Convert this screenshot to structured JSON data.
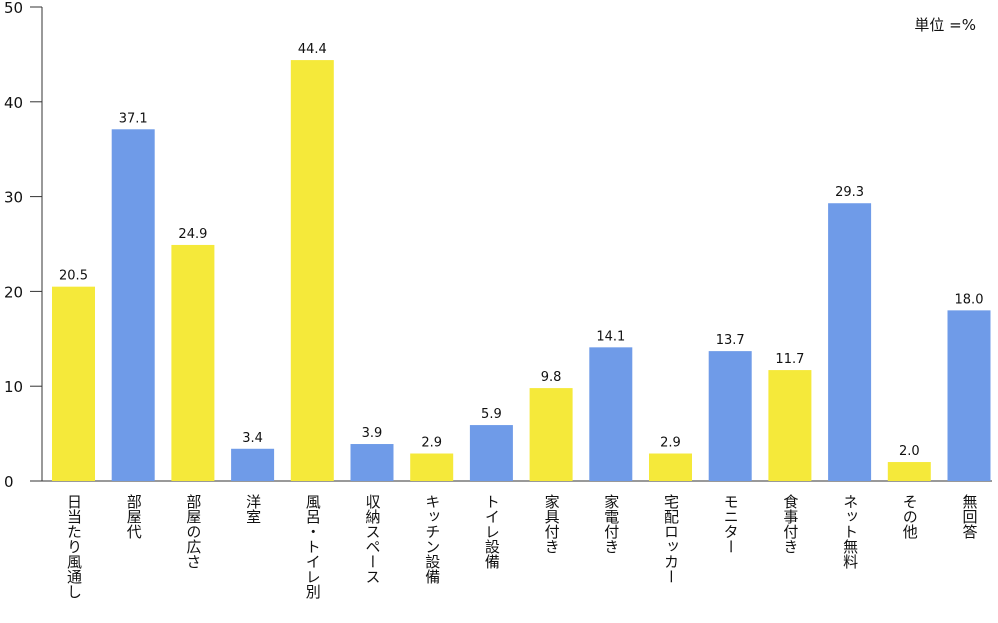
{
  "chart_data": {
    "type": "bar",
    "unit_label": "単位 =%",
    "ylim": [
      0,
      50
    ],
    "yticks": [
      0,
      10,
      20,
      30,
      40,
      50
    ],
    "colors": {
      "yellow": "#f5e93a",
      "blue": "#6f9be8"
    },
    "categories": [
      "日当たり風通し",
      "部屋代",
      "部屋の広さ",
      "洋室",
      "風呂・トイレ別",
      "収納スペース",
      "キッチン設備",
      "トイレ設備",
      "家具付き",
      "家電付き",
      "宅配ロッカー",
      "モニター",
      "食事付き",
      "ネット無料",
      "その他",
      "無回答"
    ],
    "values": [
      20.5,
      37.1,
      24.9,
      3.4,
      44.4,
      3.9,
      2.9,
      5.9,
      9.8,
      14.1,
      2.9,
      13.7,
      11.7,
      29.3,
      2.0,
      18.0
    ],
    "value_labels": [
      "20.5",
      "37.1",
      "24.9",
      "3.4",
      "44.4",
      "3.9",
      "2.9",
      "5.9",
      "9.8",
      "14.1",
      "2.9",
      "13.7",
      "11.7",
      "29.3",
      "2.0",
      "18.0"
    ],
    "bar_colors": [
      "yellow",
      "blue",
      "yellow",
      "blue",
      "yellow",
      "blue",
      "yellow",
      "blue",
      "yellow",
      "blue",
      "yellow",
      "blue",
      "yellow",
      "blue",
      "yellow",
      "blue"
    ],
    "title": "",
    "xlabel": "",
    "ylabel": ""
  }
}
